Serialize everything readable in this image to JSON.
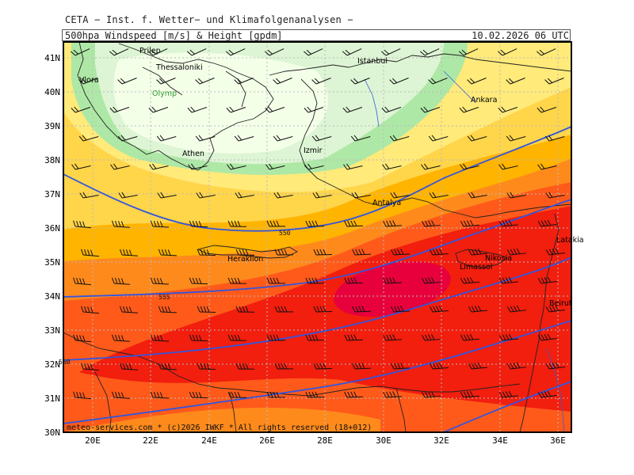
{
  "header": {
    "title": "CETA − Inst. f. Wetter− und Klimafolgenanalysen −",
    "product": "500hpa Windspeed [m/s] & Height [gpdm]",
    "valid_time": "10.02.2026 06 UTC"
  },
  "footer": {
    "credit": "meteo-services.com * (c)2026 IWKF * All rights reserved (18+012)"
  },
  "axes": {
    "lat_labels": [
      "41N",
      "40N",
      "39N",
      "38N",
      "37N",
      "36N",
      "35N",
      "34N",
      "33N",
      "32N",
      "31N",
      "30N"
    ],
    "lon_labels": [
      "20E",
      "22E",
      "24E",
      "26E",
      "28E",
      "30E",
      "32E",
      "34E",
      "36E"
    ]
  },
  "cities": [
    {
      "name": "Prilep",
      "color": "#1a1a1a"
    },
    {
      "name": "Thessaloniki",
      "color": "#1a1a1a"
    },
    {
      "name": "Vlora",
      "color": "#1a1a1a"
    },
    {
      "name": "Olymp",
      "color": "#2e9a2e"
    },
    {
      "name": "Athen",
      "color": "#1a1a1a"
    },
    {
      "name": "Istanbul",
      "color": "#1a1a1a"
    },
    {
      "name": "Izmir",
      "color": "#1a1a1a"
    },
    {
      "name": "Ankara",
      "color": "#1a1a1a"
    },
    {
      "name": "Antalya",
      "color": "#1a1a1a"
    },
    {
      "name": "Heraklion",
      "color": "#1a1a1a"
    },
    {
      "name": "Nikosia",
      "color": "#1a1a1a"
    },
    {
      "name": "Limassol",
      "color": "#1a1a1a"
    },
    {
      "name": "Latakia",
      "color": "#1a1a1a"
    },
    {
      "name": "Beirut",
      "color": "#1a1a1a"
    }
  ],
  "contour_labels": [
    "550",
    "555",
    "560"
  ],
  "colors": {
    "contour": "#3355dd",
    "grid": "#bbbbbb",
    "border": "#222222",
    "wind_fill": [
      "#f4ffe8",
      "#ddf5d4",
      "#aee8a6",
      "#ffea7a",
      "#ffd54a",
      "#ffb400",
      "#ff8a1c",
      "#ff5a1a",
      "#f21e0e",
      "#e8003c"
    ]
  }
}
